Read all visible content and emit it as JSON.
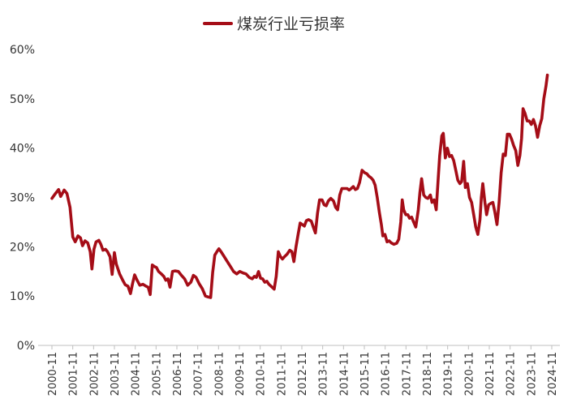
{
  "chart_data": {
    "type": "line",
    "legend": {
      "label": "煤炭行业亏损率",
      "placement": "top-center"
    },
    "yticks": [
      "0%",
      "10%",
      "20%",
      "30%",
      "40%",
      "50%",
      "60%"
    ],
    "ylim": [
      0,
      60
    ],
    "grid": false,
    "xticks": [
      "2000-11",
      "2001-11",
      "2002-11",
      "2003-11",
      "2004-11",
      "2005-11",
      "2006-11",
      "2007-11",
      "2008-11",
      "2009-11",
      "2010-11",
      "2011-11",
      "2012-11",
      "2013-11",
      "2014-11",
      "2015-11",
      "2016-11",
      "2017-11",
      "2018-11",
      "2019-11",
      "2020-11",
      "2021-11",
      "2022-11",
      "2023-11",
      "2024-11"
    ],
    "xlim": [
      2000.83,
      2024.83
    ],
    "series": [
      {
        "name": "煤炭行业亏损率",
        "color": "#a50d17",
        "points": [
          [
            2000.83,
            29.8
          ],
          [
            2001.0,
            30.8
          ],
          [
            2001.15,
            31.6
          ],
          [
            2001.25,
            30.2
          ],
          [
            2001.42,
            31.5
          ],
          [
            2001.55,
            30.8
          ],
          [
            2001.7,
            28.0
          ],
          [
            2001.83,
            22.0
          ],
          [
            2001.95,
            21.0
          ],
          [
            2002.08,
            22.2
          ],
          [
            2002.2,
            21.8
          ],
          [
            2002.3,
            20.2
          ],
          [
            2002.42,
            21.2
          ],
          [
            2002.55,
            20.8
          ],
          [
            2002.67,
            19.0
          ],
          [
            2002.75,
            15.5
          ],
          [
            2002.85,
            19.5
          ],
          [
            2002.95,
            21.0
          ],
          [
            2003.08,
            21.3
          ],
          [
            2003.18,
            20.5
          ],
          [
            2003.28,
            19.3
          ],
          [
            2003.4,
            19.5
          ],
          [
            2003.5,
            19.0
          ],
          [
            2003.62,
            18.0
          ],
          [
            2003.72,
            14.4
          ],
          [
            2003.83,
            18.8
          ],
          [
            2003.92,
            16.5
          ],
          [
            2004.08,
            14.5
          ],
          [
            2004.22,
            13.3
          ],
          [
            2004.35,
            12.3
          ],
          [
            2004.48,
            12.0
          ],
          [
            2004.6,
            10.5
          ],
          [
            2004.7,
            12.5
          ],
          [
            2004.8,
            14.3
          ],
          [
            2004.92,
            13.2
          ],
          [
            2005.05,
            12.2
          ],
          [
            2005.2,
            12.4
          ],
          [
            2005.35,
            12.0
          ],
          [
            2005.45,
            11.8
          ],
          [
            2005.55,
            10.3
          ],
          [
            2005.65,
            16.3
          ],
          [
            2005.75,
            16.0
          ],
          [
            2005.85,
            15.8
          ],
          [
            2005.95,
            15.0
          ],
          [
            2006.08,
            14.5
          ],
          [
            2006.2,
            14.0
          ],
          [
            2006.3,
            13.2
          ],
          [
            2006.4,
            13.5
          ],
          [
            2006.5,
            11.8
          ],
          [
            2006.62,
            15.0
          ],
          [
            2006.75,
            15.1
          ],
          [
            2006.9,
            15.0
          ],
          [
            2007.05,
            14.2
          ],
          [
            2007.2,
            13.5
          ],
          [
            2007.35,
            12.2
          ],
          [
            2007.5,
            12.8
          ],
          [
            2007.62,
            14.2
          ],
          [
            2007.75,
            13.8
          ],
          [
            2007.9,
            12.5
          ],
          [
            2008.05,
            11.5
          ],
          [
            2008.2,
            10.0
          ],
          [
            2008.35,
            9.8
          ],
          [
            2008.45,
            9.7
          ],
          [
            2008.55,
            14.8
          ],
          [
            2008.65,
            18.3
          ],
          [
            2008.75,
            19.0
          ],
          [
            2008.85,
            19.6
          ],
          [
            2008.95,
            19.0
          ],
          [
            2009.1,
            18.0
          ],
          [
            2009.25,
            17.0
          ],
          [
            2009.4,
            16.0
          ],
          [
            2009.55,
            15.0
          ],
          [
            2009.7,
            14.5
          ],
          [
            2009.85,
            15.0
          ],
          [
            2010.0,
            14.7
          ],
          [
            2010.15,
            14.5
          ],
          [
            2010.3,
            13.8
          ],
          [
            2010.45,
            13.5
          ],
          [
            2010.55,
            14.0
          ],
          [
            2010.65,
            13.8
          ],
          [
            2010.75,
            15.0
          ],
          [
            2010.85,
            13.6
          ],
          [
            2010.95,
            13.5
          ],
          [
            2011.05,
            12.8
          ],
          [
            2011.15,
            13.0
          ],
          [
            2011.25,
            12.4
          ],
          [
            2011.4,
            11.8
          ],
          [
            2011.5,
            11.4
          ],
          [
            2011.6,
            14.0
          ],
          [
            2011.7,
            19.0
          ],
          [
            2011.8,
            18.0
          ],
          [
            2011.9,
            17.5
          ],
          [
            2012.0,
            18.0
          ],
          [
            2012.12,
            18.5
          ],
          [
            2012.25,
            19.3
          ],
          [
            2012.35,
            19.0
          ],
          [
            2012.45,
            17.0
          ],
          [
            2012.55,
            20.0
          ],
          [
            2012.65,
            22.5
          ],
          [
            2012.75,
            24.8
          ],
          [
            2012.85,
            24.5
          ],
          [
            2012.95,
            24.2
          ],
          [
            2013.05,
            25.3
          ],
          [
            2013.15,
            25.5
          ],
          [
            2013.28,
            25.2
          ],
          [
            2013.38,
            24.0
          ],
          [
            2013.48,
            22.8
          ],
          [
            2013.58,
            26.8
          ],
          [
            2013.68,
            29.5
          ],
          [
            2013.8,
            29.5
          ],
          [
            2013.9,
            28.5
          ],
          [
            2014.0,
            28.3
          ],
          [
            2014.1,
            29.3
          ],
          [
            2014.22,
            29.8
          ],
          [
            2014.35,
            29.3
          ],
          [
            2014.45,
            28.0
          ],
          [
            2014.55,
            27.5
          ],
          [
            2014.65,
            30.5
          ],
          [
            2014.75,
            31.8
          ],
          [
            2014.88,
            31.8
          ],
          [
            2015.0,
            31.8
          ],
          [
            2015.1,
            31.5
          ],
          [
            2015.2,
            31.8
          ],
          [
            2015.3,
            32.2
          ],
          [
            2015.4,
            31.6
          ],
          [
            2015.5,
            31.8
          ],
          [
            2015.6,
            33.0
          ],
          [
            2015.72,
            35.5
          ],
          [
            2015.85,
            35.0
          ],
          [
            2015.95,
            34.8
          ],
          [
            2016.05,
            34.3
          ],
          [
            2016.15,
            34.0
          ],
          [
            2016.25,
            33.5
          ],
          [
            2016.35,
            32.5
          ],
          [
            2016.45,
            30.0
          ],
          [
            2016.55,
            27.0
          ],
          [
            2016.65,
            24.5
          ],
          [
            2016.72,
            22.2
          ],
          [
            2016.82,
            22.5
          ],
          [
            2016.92,
            21.0
          ],
          [
            2017.02,
            21.2
          ],
          [
            2017.12,
            20.8
          ],
          [
            2017.25,
            20.5
          ],
          [
            2017.38,
            20.7
          ],
          [
            2017.48,
            21.5
          ],
          [
            2017.58,
            25.0
          ],
          [
            2017.65,
            29.5
          ],
          [
            2017.72,
            27.5
          ],
          [
            2017.82,
            26.5
          ],
          [
            2017.92,
            26.5
          ],
          [
            2018.0,
            25.8
          ],
          [
            2018.1,
            26.0
          ],
          [
            2018.2,
            25.0
          ],
          [
            2018.3,
            24.0
          ],
          [
            2018.42,
            27.5
          ],
          [
            2018.5,
            31.0
          ],
          [
            2018.58,
            33.8
          ],
          [
            2018.68,
            30.5
          ],
          [
            2018.78,
            30.0
          ],
          [
            2018.88,
            29.8
          ],
          [
            2019.0,
            30.5
          ],
          [
            2019.08,
            29.0
          ],
          [
            2019.18,
            29.5
          ],
          [
            2019.28,
            27.5
          ],
          [
            2019.38,
            34.0
          ],
          [
            2019.45,
            38.5
          ],
          [
            2019.55,
            42.5
          ],
          [
            2019.62,
            43.0
          ],
          [
            2019.72,
            38.0
          ],
          [
            2019.82,
            40.0
          ],
          [
            2019.92,
            38.3
          ],
          [
            2020.02,
            38.5
          ],
          [
            2020.12,
            37.5
          ],
          [
            2020.22,
            35.5
          ],
          [
            2020.32,
            33.5
          ],
          [
            2020.42,
            32.8
          ],
          [
            2020.5,
            33.2
          ],
          [
            2020.6,
            37.3
          ],
          [
            2020.68,
            32.0
          ],
          [
            2020.78,
            32.8
          ],
          [
            2020.88,
            30.0
          ],
          [
            2020.98,
            29.0
          ],
          [
            2021.08,
            26.5
          ],
          [
            2021.18,
            24.0
          ],
          [
            2021.28,
            22.5
          ],
          [
            2021.38,
            25.5
          ],
          [
            2021.45,
            30.0
          ],
          [
            2021.52,
            32.8
          ],
          [
            2021.62,
            29.0
          ],
          [
            2021.7,
            26.5
          ],
          [
            2021.8,
            28.5
          ],
          [
            2021.9,
            28.8
          ],
          [
            2022.0,
            29.0
          ],
          [
            2022.1,
            27.0
          ],
          [
            2022.2,
            24.5
          ],
          [
            2022.3,
            29.0
          ],
          [
            2022.4,
            35.0
          ],
          [
            2022.5,
            38.8
          ],
          [
            2022.6,
            38.5
          ],
          [
            2022.7,
            42.8
          ],
          [
            2022.8,
            42.8
          ],
          [
            2022.9,
            41.8
          ],
          [
            2023.0,
            40.5
          ],
          [
            2023.1,
            39.5
          ],
          [
            2023.2,
            36.5
          ],
          [
            2023.3,
            38.5
          ],
          [
            2023.38,
            42.0
          ],
          [
            2023.45,
            48.0
          ],
          [
            2023.55,
            47.0
          ],
          [
            2023.65,
            45.5
          ],
          [
            2023.75,
            45.5
          ],
          [
            2023.85,
            44.8
          ],
          [
            2023.95,
            45.8
          ],
          [
            2024.05,
            44.5
          ],
          [
            2024.15,
            42.2
          ],
          [
            2024.25,
            44.5
          ],
          [
            2024.35,
            46.0
          ],
          [
            2024.45,
            50.0
          ],
          [
            2024.55,
            52.5
          ],
          [
            2024.62,
            54.8
          ]
        ]
      }
    ]
  }
}
